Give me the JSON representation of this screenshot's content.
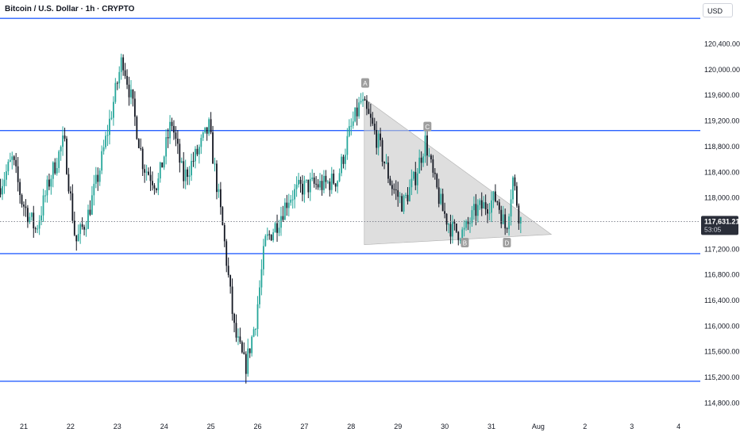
{
  "header": {
    "title": "Bitcoin / U.S. Dollar · 1h · CRYPTO",
    "currency_button": "USD"
  },
  "price_badge": {
    "price": "117,631.21",
    "countdown": "53:05",
    "color": "#2a2e39"
  },
  "colors": {
    "up": "#26a69a",
    "down": "#131722",
    "level_line": "#2962ff",
    "triangle_fill": "#c8c8c8",
    "pattern_label_bg": "#9e9e9e"
  },
  "chart_data": {
    "type": "candlestick",
    "symbol": "BTCUSD",
    "timeframe": "1h",
    "ylim": [
      114650,
      120950
    ],
    "y_ticks": [
      120400,
      120000,
      119600,
      119200,
      118800,
      118400,
      118000,
      117600,
      117200,
      116800,
      116400,
      116000,
      115600,
      115200,
      114800
    ],
    "y_tick_labels": [
      "120,400.00",
      "120,000.00",
      "119,600.00",
      "119,200.00",
      "118,800.00",
      "118,400.00",
      "118,000.00",
      "",
      "117,200.00",
      "116,800.00",
      "116,400.00",
      "116,000.00",
      "115,600.00",
      "115,200.00",
      "114,800.00"
    ],
    "x_labels": [
      "21",
      "22",
      "23",
      "24",
      "25",
      "26",
      "27",
      "28",
      "29",
      "30",
      "31",
      "Aug",
      "2",
      "3",
      "4"
    ],
    "horizontal_levels": [
      120800,
      119050,
      117130,
      115140
    ],
    "current_price": 117631.21,
    "pattern": {
      "labels": [
        {
          "text": "A",
          "day": 28.3,
          "price": 119780
        },
        {
          "text": "C",
          "day": 29.63,
          "price": 119100
        },
        {
          "text": "B",
          "day": 30.43,
          "price": 117290
        },
        {
          "text": "D",
          "day": 31.33,
          "price": 117290
        }
      ],
      "triangle": [
        {
          "day": 28.28,
          "price": 119550
        },
        {
          "day": 32.28,
          "price": 117430
        },
        {
          "day": 28.28,
          "price": 117270
        }
      ]
    },
    "anchors": [
      [
        20.5,
        118150
      ],
      [
        20.8,
        118600
      ],
      [
        21.0,
        117950
      ],
      [
        21.3,
        117500
      ],
      [
        21.6,
        118300
      ],
      [
        21.9,
        118900
      ],
      [
        22.15,
        117300
      ],
      [
        22.4,
        117700
      ],
      [
        22.65,
        118400
      ],
      [
        22.85,
        119100
      ],
      [
        23.15,
        120200
      ],
      [
        23.35,
        119500
      ],
      [
        23.6,
        118500
      ],
      [
        23.9,
        118200
      ],
      [
        24.2,
        119200
      ],
      [
        24.45,
        118300
      ],
      [
        24.75,
        118700
      ],
      [
        25.0,
        119100
      ],
      [
        25.3,
        117500
      ],
      [
        25.55,
        115900
      ],
      [
        25.78,
        115350
      ],
      [
        26.0,
        116100
      ],
      [
        26.2,
        117300
      ],
      [
        26.45,
        117600
      ],
      [
        26.7,
        118000
      ],
      [
        26.95,
        118150
      ],
      [
        27.2,
        118200
      ],
      [
        27.45,
        118200
      ],
      [
        27.75,
        118300
      ],
      [
        28.0,
        119000
      ],
      [
        28.25,
        119500
      ],
      [
        28.45,
        119200
      ],
      [
        28.65,
        118800
      ],
      [
        28.9,
        118200
      ],
      [
        29.15,
        117900
      ],
      [
        29.4,
        118300
      ],
      [
        29.63,
        118900
      ],
      [
        29.8,
        118300
      ],
      [
        30.0,
        117800
      ],
      [
        30.2,
        117500
      ],
      [
        30.45,
        117450
      ],
      [
        30.7,
        117800
      ],
      [
        30.95,
        117900
      ],
      [
        31.15,
        118000
      ],
      [
        31.35,
        117500
      ],
      [
        31.5,
        118300
      ],
      [
        31.65,
        117650
      ]
    ]
  }
}
